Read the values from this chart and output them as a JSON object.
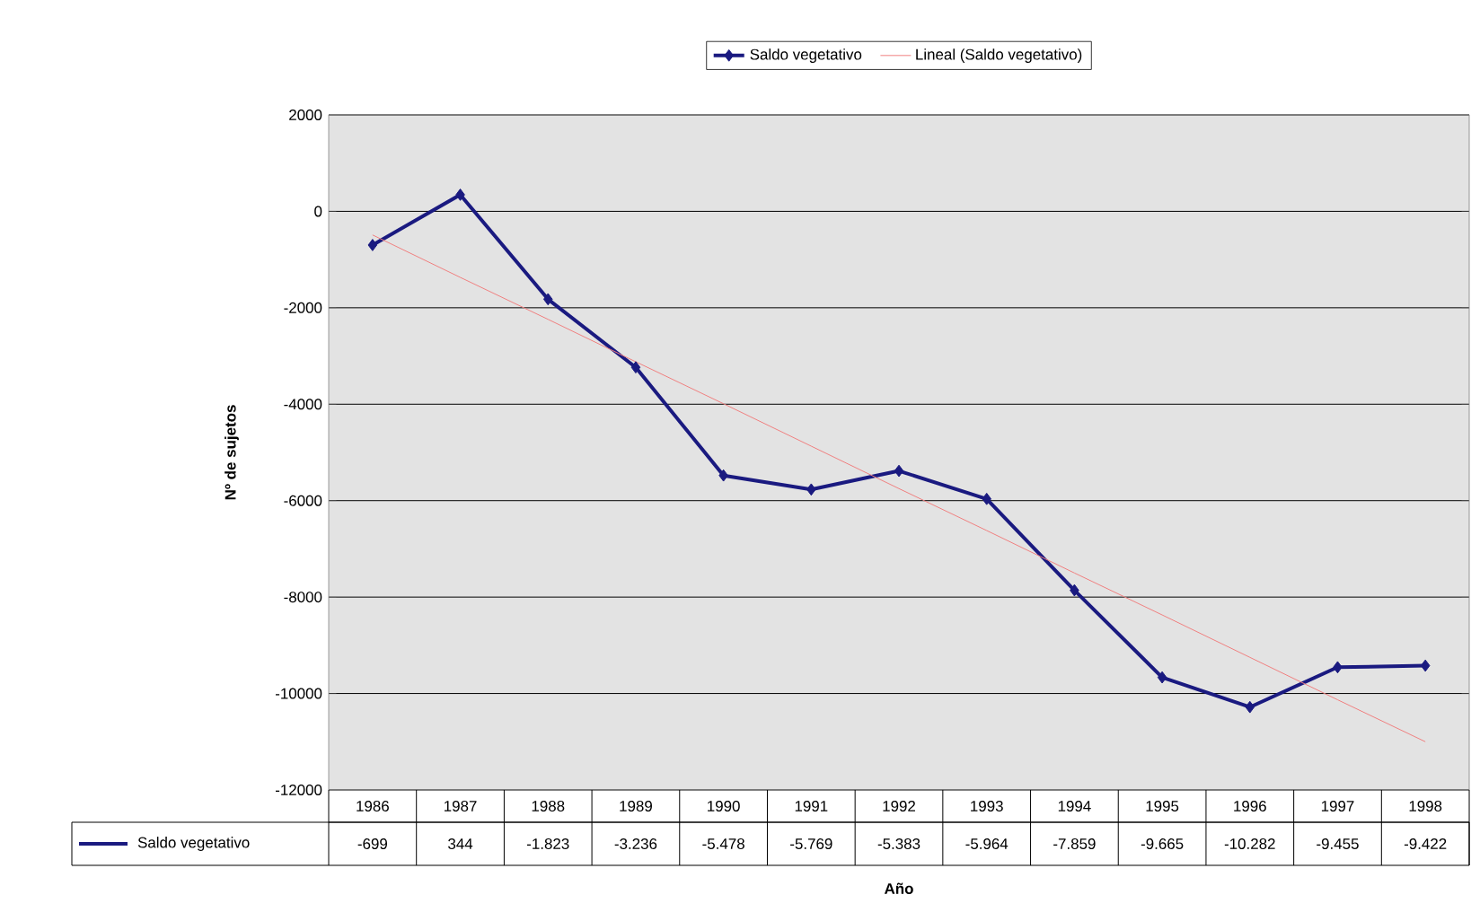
{
  "chart_data": {
    "type": "line",
    "xlabel": "Año",
    "ylabel": "Nº de sujetos",
    "categories": [
      "1986",
      "1987",
      "1988",
      "1989",
      "1990",
      "1991",
      "1992",
      "1993",
      "1994",
      "1995",
      "1996",
      "1997",
      "1998"
    ],
    "series": [
      {
        "name": "Saldo vegetativo",
        "color": "#1a1a80",
        "values": [
          -699,
          344,
          -1823,
          -3236,
          -5478,
          -5769,
          -5383,
          -5964,
          -7859,
          -9665,
          -10282,
          -9455,
          -9422
        ],
        "value_labels": [
          "-699",
          "344",
          "-1.823",
          "-3.236",
          "-5.478",
          "-5.769",
          "-5.383",
          "-5.964",
          "-7.859",
          "-9.665",
          "-10.282",
          "-9.455",
          "-9.422"
        ]
      },
      {
        "name": "Lineal (Saldo vegetativo)",
        "type": "line",
        "color": "#f08080",
        "marker": "none",
        "values": [
          -490,
          -1370,
          -2240,
          -3120,
          -3990,
          -4870,
          -5750,
          -6620,
          -7500,
          -8370,
          -9250,
          -10130,
          -11000
        ]
      }
    ],
    "ylim": [
      -12000,
      2000
    ],
    "yticks": [
      -12000,
      -10000,
      -8000,
      -6000,
      -4000,
      -2000,
      0,
      2000
    ],
    "grid": "y",
    "legend": "top",
    "marker": "diamond"
  }
}
